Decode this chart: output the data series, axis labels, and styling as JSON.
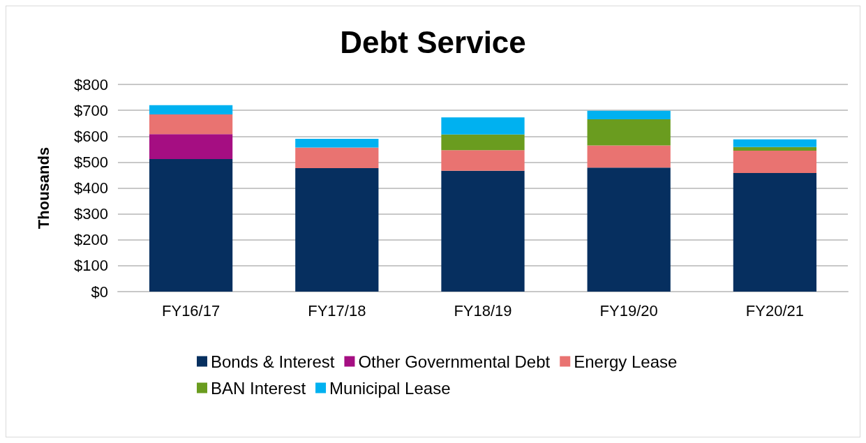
{
  "chart_data": {
    "type": "bar",
    "title": "Debt Service",
    "ylabel": "Thousands",
    "stacked": true,
    "grid": "y",
    "legend": "bottom",
    "categories": [
      "FY16/17",
      "FY17/18",
      "FY18/19",
      "FY19/20",
      "FY20/21"
    ],
    "ylim": [
      0,
      800
    ],
    "yticks": [
      {
        "value": 0,
        "label": "$0"
      },
      {
        "value": 100,
        "label": "$100"
      },
      {
        "value": 200,
        "label": "$200"
      },
      {
        "value": 300,
        "label": "$300"
      },
      {
        "value": 400,
        "label": "$400"
      },
      {
        "value": 500,
        "label": "$500"
      },
      {
        "value": 600,
        "label": "$600"
      },
      {
        "value": 700,
        "label": "$700"
      },
      {
        "value": 800,
        "label": "$800"
      }
    ],
    "series": [
      {
        "name": "Bonds & Interest",
        "color": "#062f5f",
        "values": [
          512,
          477,
          467,
          479,
          458
        ]
      },
      {
        "name": "Other Governmental Debt",
        "color": "#a50e82",
        "values": [
          96,
          null,
          null,
          null,
          null
        ]
      },
      {
        "name": "Energy Lease",
        "color": "#e97371",
        "values": [
          76,
          79,
          79,
          85,
          86
        ]
      },
      {
        "name": "BAN Interest",
        "color": "#6a9c1f",
        "values": [
          null,
          null,
          61,
          101,
          14
        ]
      },
      {
        "name": "Municipal Lease",
        "color": "#00b1f0",
        "values": [
          36,
          34,
          66,
          33,
          30
        ]
      }
    ]
  }
}
